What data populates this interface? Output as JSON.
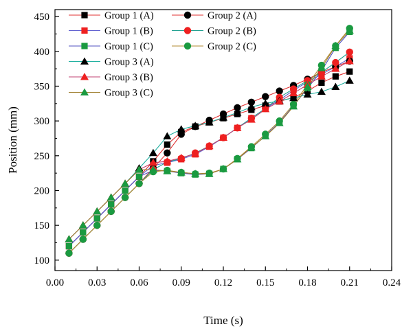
{
  "chart_data": {
    "type": "line",
    "xlabel": "Time (s)",
    "ylabel": "Position (mm)",
    "xlim": [
      0.0,
      0.24
    ],
    "ylim": [
      85,
      460
    ],
    "x_ticks": [
      0.0,
      0.03,
      0.06,
      0.09,
      0.12,
      0.15,
      0.18,
      0.21,
      0.24
    ],
    "x_tick_labels": [
      "0.00",
      "0.03",
      "0.06",
      "0.09",
      "0.12",
      "0.15",
      "0.18",
      "0.21",
      "0.24"
    ],
    "y_ticks": [
      100,
      150,
      200,
      250,
      300,
      350,
      400,
      450
    ],
    "y_tick_labels": [
      "100",
      "150",
      "200",
      "250",
      "300",
      "350",
      "400",
      "450"
    ],
    "grid": false,
    "legend_position": "top-left",
    "x": [
      0.01,
      0.02,
      0.03,
      0.04,
      0.05,
      0.06,
      0.07,
      0.08,
      0.09,
      0.1,
      0.11,
      0.12,
      0.13,
      0.14,
      0.15,
      0.16,
      0.17,
      0.18,
      0.19,
      0.2,
      0.21
    ],
    "series": [
      {
        "name": "Group 1 (A)",
        "marker": "square",
        "color": "#000000",
        "line_color": "#e03030",
        "values": [
          120,
          140,
          160,
          180,
          200,
          220,
          242,
          266,
          284,
          292,
          298,
          304,
          310,
          316,
          322,
          328,
          334,
          343,
          355,
          364,
          371
        ]
      },
      {
        "name": "Group 1 (B)",
        "marker": "square",
        "color": "#ee2020",
        "line_color": "#6060d0",
        "values": [
          120,
          140,
          160,
          180,
          200,
          220,
          236,
          240,
          245,
          252,
          263,
          276,
          290,
          304,
          318,
          330,
          344,
          356,
          367,
          378,
          390
        ]
      },
      {
        "name": "Group 1 (C)",
        "marker": "square",
        "color": "#1a9a40",
        "line_color": "#5050c0",
        "values": [
          120,
          140,
          160,
          180,
          200,
          220,
          229,
          228,
          225,
          223,
          224,
          231,
          245,
          261,
          279,
          298,
          322,
          347,
          372,
          405,
          428
        ]
      },
      {
        "name": "Group 2 (A)",
        "marker": "circle",
        "color": "#000000",
        "line_color": "#e03030",
        "values": [
          110,
          130,
          150,
          170,
          190,
          210,
          232,
          254,
          281,
          292,
          301,
          310,
          319,
          327,
          335,
          343,
          351,
          360,
          370,
          378,
          386
        ]
      },
      {
        "name": "Group 2 (B)",
        "marker": "circle",
        "color": "#ee2020",
        "line_color": "#20a090",
        "values": [
          110,
          130,
          150,
          170,
          190,
          210,
          230,
          241,
          246,
          254,
          264,
          276,
          290,
          304,
          318,
          334,
          346,
          358,
          370,
          384,
          399
        ]
      },
      {
        "name": "Group 2 (C)",
        "marker": "circle",
        "color": "#1a9a40",
        "line_color": "#b08a30",
        "values": [
          110,
          130,
          150,
          170,
          190,
          210,
          227,
          229,
          226,
          224,
          225,
          231,
          246,
          263,
          281,
          300,
          324,
          352,
          380,
          408,
          433
        ]
      },
      {
        "name": "Group 3 (A)",
        "marker": "triangle",
        "color": "#000000",
        "line_color": "#20b0a0",
        "values": [
          130,
          150,
          170,
          190,
          210,
          232,
          254,
          278,
          288,
          293,
          298,
          305,
          312,
          320,
          325,
          329,
          333,
          338,
          342,
          349,
          358
        ]
      },
      {
        "name": "Group 3 (B)",
        "marker": "triangle",
        "color": "#ee2020",
        "line_color": "#c04070",
        "values": [
          130,
          150,
          170,
          190,
          210,
          230,
          240,
          242,
          247,
          253,
          264,
          276,
          290,
          302,
          317,
          328,
          340,
          352,
          364,
          375,
          386
        ]
      },
      {
        "name": "Group 3 (C)",
        "marker": "triangle",
        "color": "#1a9a40",
        "line_color": "#a08030",
        "values": [
          130,
          150,
          170,
          190,
          210,
          230,
          230,
          228,
          226,
          224,
          224,
          231,
          245,
          262,
          278,
          297,
          321,
          349,
          376,
          408,
          430
        ]
      }
    ]
  }
}
